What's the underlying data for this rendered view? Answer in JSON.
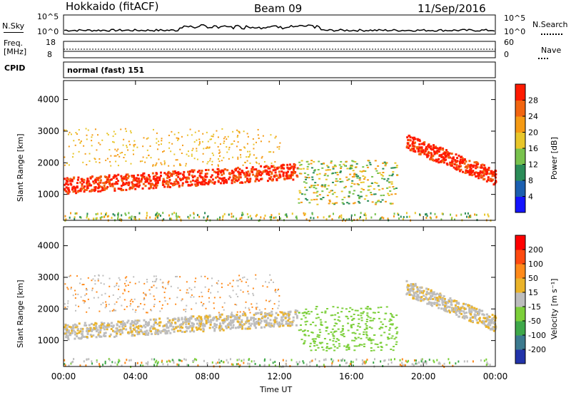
{
  "header": {
    "station": "Hokkaido (fitACF)",
    "beam": "Beam 09",
    "date": "11/Sep/2016"
  },
  "panels": {
    "nsky": {
      "label": "N.Sky",
      "right_label": "N.Search",
      "left_ticks": [
        "10^5",
        "10^0"
      ],
      "right_ticks": [
        "10^5",
        "10^0"
      ]
    },
    "freq": {
      "label": "Freq.",
      "unit": "[MHz]",
      "left_ticks": [
        "18",
        "8"
      ],
      "right_ticks": [
        "60",
        "0"
      ],
      "right_label": "Nave"
    },
    "cpid": {
      "label": "CPID",
      "text": "normal (fast) 151"
    }
  },
  "chart_data": [
    {
      "type": "heatmap",
      "title": "Power",
      "ylabel": "Slant Range [km]",
      "colorbar_label": "Power [dB]",
      "colorbar_ticks": [
        "4",
        "8",
        "12",
        "16",
        "20",
        "24",
        "28"
      ],
      "colors": [
        "#1414ff",
        "#1b5fb0",
        "#2b8c58",
        "#78c24d",
        "#e8c62a",
        "#f59a14",
        "#f26510",
        "#ff1a00"
      ],
      "x": [
        "00:00",
        "04:00",
        "08:00",
        "12:00",
        "16:00",
        "20:00",
        "00:00"
      ],
      "y_ticks": [
        "1000",
        "2000",
        "3000",
        "4000"
      ],
      "xlim": [
        0,
        24
      ],
      "ylim": [
        180,
        4600
      ]
    },
    {
      "type": "heatmap",
      "title": "Velocity",
      "ylabel": "Slant Range [km]",
      "xlabel": "Time UT",
      "colorbar_label": "Velocity [m s⁻¹]",
      "colorbar_ticks": [
        "200",
        "100",
        "50",
        "15",
        "-15",
        "-50",
        "-100",
        "-200"
      ],
      "colors": [
        "#2233aa",
        "#3c7a8f",
        "#3fa84a",
        "#7ccf3a",
        "#bdbdbd",
        "#eab32a",
        "#ff8a1a",
        "#ff4a10",
        "#ff0000"
      ],
      "x": [
        "00:00",
        "04:00",
        "08:00",
        "12:00",
        "16:00",
        "20:00",
        "00:00"
      ],
      "y_ticks": [
        "1000",
        "2000",
        "3000",
        "4000"
      ],
      "xlim": [
        0,
        24
      ],
      "ylim": [
        180,
        4600
      ]
    }
  ]
}
